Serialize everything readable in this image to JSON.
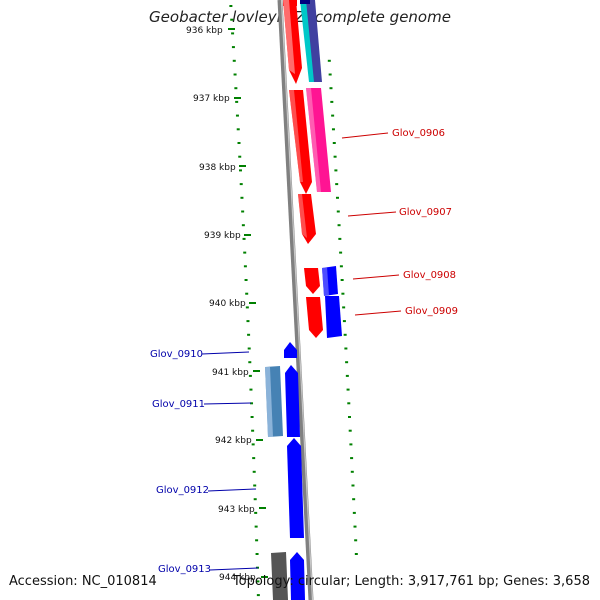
{
  "title": "Geobacter lovleyi SZ, complete genome",
  "footer": {
    "accession": "Accession: NC_010814",
    "summary": "Topology: circular; Length: 3,917,761 bp; Genes: 3,658"
  },
  "colors": {
    "forward_red": "#ff0000",
    "forward_magenta": "#ff1493",
    "forward_cyan": "#00c8c8",
    "reverse_blue": "#0000ff",
    "reverse_steel": "#4682b4",
    "reverse_gray": "#555555",
    "backbone": "#808080",
    "tick_green": "#008000",
    "label_red": "#cc0000",
    "label_blue": "#0000aa"
  },
  "scale_labels": [
    "936 kbp",
    "937 kbp",
    "938 kbp",
    "939 kbp",
    "940 kbp",
    "941 kbp",
    "942 kbp",
    "943 kbp",
    "944 kbp"
  ],
  "gene_labels": {
    "forward": [
      "Glov_0906",
      "Glov_0907",
      "Glov_0908",
      "Glov_0909"
    ],
    "reverse": [
      "Glov_0910",
      "Glov_0911",
      "Glov_0912",
      "Glov_0913"
    ]
  }
}
